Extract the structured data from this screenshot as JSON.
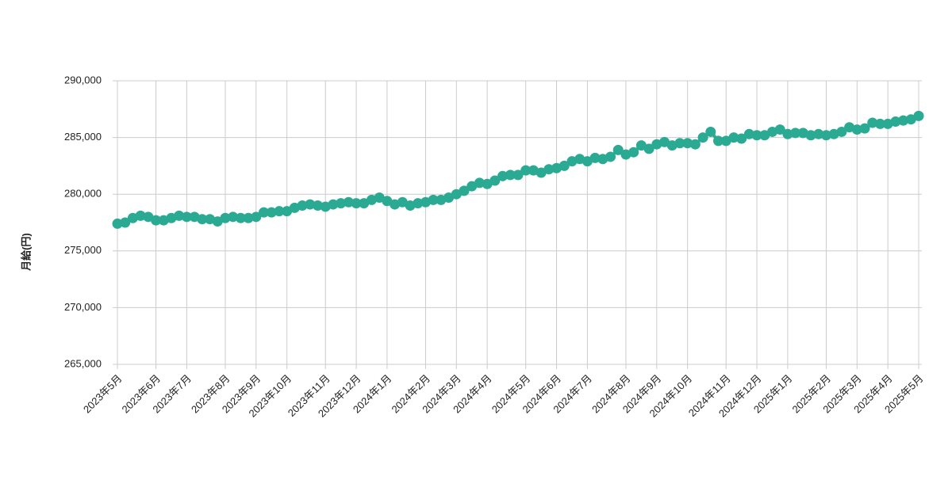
{
  "chart_data": {
    "type": "line",
    "y_label": "月給(円)",
    "categories": [
      "2023年5月",
      null,
      null,
      null,
      null,
      "2023年6月",
      null,
      null,
      null,
      "2023年7月",
      null,
      null,
      null,
      null,
      "2023年8月",
      null,
      null,
      null,
      "2023年9月",
      null,
      null,
      null,
      "2023年10月",
      null,
      null,
      null,
      null,
      "2023年11月",
      null,
      null,
      null,
      "2023年12月",
      null,
      null,
      null,
      "2024年1月",
      null,
      null,
      null,
      null,
      "2024年2月",
      null,
      null,
      null,
      "2024年3月",
      null,
      null,
      null,
      "2024年4月",
      null,
      null,
      null,
      null,
      "2024年5月",
      null,
      null,
      null,
      "2024年6月",
      null,
      null,
      null,
      "2024年7月",
      null,
      null,
      null,
      null,
      "2024年8月",
      null,
      null,
      null,
      "2024年9月",
      null,
      null,
      null,
      "2024年10月",
      null,
      null,
      null,
      null,
      "2024年11月",
      null,
      null,
      null,
      "2024年12月",
      null,
      null,
      null,
      "2025年1月",
      null,
      null,
      null,
      null,
      "2025年2月",
      null,
      null,
      null,
      "2025年3月",
      null,
      null,
      null,
      "2025年4月",
      null,
      null,
      null,
      "2025年5月"
    ],
    "series": [
      {
        "color": "#2aaa93",
        "values": [
          277400,
          277500,
          277900,
          278100,
          278000,
          277700,
          277700,
          277900,
          278100,
          278000,
          278000,
          277800,
          277800,
          277600,
          277900,
          278000,
          277900,
          277900,
          278000,
          278400,
          278400,
          278500,
          278500,
          278800,
          279000,
          279100,
          279000,
          278900,
          279100,
          279200,
          279300,
          279200,
          279200,
          279500,
          279700,
          279400,
          279100,
          279300,
          279000,
          279200,
          279300,
          279500,
          279500,
          279700,
          280000,
          280300,
          280700,
          281000,
          280900,
          281200,
          281600,
          281700,
          281700,
          282100,
          282100,
          281900,
          282200,
          282300,
          282500,
          282900,
          283100,
          282900,
          283200,
          283100,
          283300,
          283900,
          283500,
          283700,
          284300,
          284000,
          284400,
          284600,
          284300,
          284500,
          284500,
          284400,
          285000,
          285500,
          284700,
          284700,
          285000,
          284900,
          285300,
          285200,
          285200,
          285500,
          285700,
          285300,
          285400,
          285400,
          285200,
          285300,
          285200,
          285300,
          285500,
          285900,
          285700,
          285800,
          286300,
          286200,
          286200,
          286400,
          286500,
          286600,
          286900
        ]
      }
    ],
    "ylim": [
      265000,
      290000
    ],
    "yticks": [
      {
        "value": 265000,
        "label": "265,000"
      },
      {
        "value": 270000,
        "label": "270,000"
      },
      {
        "value": 275000,
        "label": "275,000"
      },
      {
        "value": 280000,
        "label": "280,000"
      },
      {
        "value": 285000,
        "label": "285,000"
      },
      {
        "value": 290000,
        "label": "290,000"
      }
    ],
    "grid": true
  }
}
